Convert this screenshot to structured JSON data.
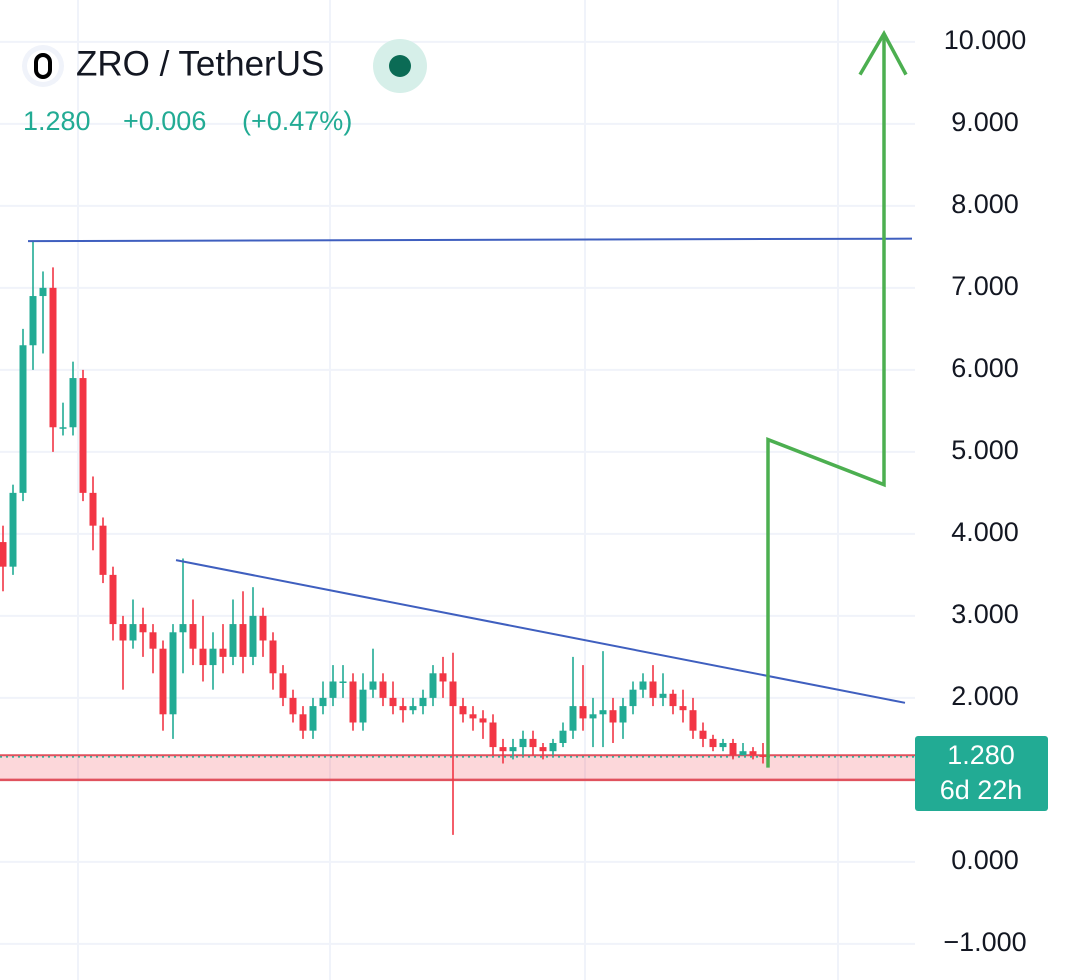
{
  "chart_data": {
    "type": "candlestick",
    "title": "ZRO / TetherUS",
    "price": {
      "value": 1.28,
      "label": "1.280"
    },
    "change": {
      "value": 0.006,
      "label": "+0.006"
    },
    "change_pct": {
      "value": 0.47,
      "label": "(+0.47%)"
    },
    "countdown": "6d 22h",
    "up_color": "#22ab94",
    "down_color": "#f23645",
    "open": [
      3.9,
      3.6,
      4.5,
      6.3,
      6.9,
      7.0,
      5.3,
      5.3,
      5.9,
      4.5,
      4.1,
      3.5,
      2.9,
      2.7,
      2.9,
      2.8,
      2.6,
      1.8,
      2.8,
      2.9,
      2.6,
      2.4,
      2.6,
      2.5,
      2.9,
      2.5,
      3.0,
      2.7,
      2.3,
      2.0,
      1.8,
      1.6,
      1.9,
      2.0,
      2.2,
      2.2,
      1.7,
      2.1,
      2.2,
      2.0,
      1.9,
      1.85,
      1.9,
      2.0,
      2.3,
      2.2,
      1.9,
      1.8,
      1.75,
      1.7,
      1.4,
      1.35,
      1.4,
      1.5,
      1.4,
      1.35,
      1.45,
      1.6,
      1.9,
      1.75,
      1.8,
      1.85,
      1.7,
      1.9,
      2.1,
      2.2,
      2.0,
      2.05,
      1.9,
      1.85,
      1.6,
      1.5,
      1.4,
      1.45,
      1.3,
      1.35,
      1.3
    ],
    "high": [
      4.1,
      4.6,
      6.5,
      7.57,
      7.2,
      7.25,
      5.6,
      6.1,
      6.0,
      4.7,
      4.2,
      3.6,
      3.0,
      3.2,
      3.1,
      2.9,
      2.7,
      2.9,
      3.7,
      3.2,
      3.0,
      2.8,
      2.9,
      3.2,
      3.3,
      3.35,
      3.1,
      2.8,
      2.4,
      2.1,
      1.9,
      2.0,
      2.2,
      2.4,
      2.4,
      2.3,
      2.3,
      2.6,
      2.3,
      2.2,
      2.0,
      2.0,
      2.1,
      2.4,
      2.5,
      2.55,
      2.0,
      1.9,
      1.85,
      1.8,
      1.5,
      1.5,
      1.6,
      1.6,
      1.45,
      1.5,
      1.7,
      2.5,
      2.4,
      2.0,
      2.57,
      2.0,
      2.0,
      2.2,
      2.3,
      2.4,
      2.3,
      2.1,
      2.1,
      2.0,
      1.7,
      1.55,
      1.5,
      1.5,
      1.45,
      1.4,
      1.45
    ],
    "low": [
      3.3,
      3.5,
      4.4,
      6.0,
      6.2,
      5.0,
      5.2,
      5.2,
      4.4,
      3.8,
      3.4,
      2.7,
      2.1,
      2.6,
      2.5,
      2.3,
      1.6,
      1.5,
      2.3,
      2.4,
      2.2,
      2.1,
      2.3,
      2.4,
      2.3,
      2.4,
      2.5,
      2.1,
      1.9,
      1.7,
      1.5,
      1.5,
      1.8,
      1.9,
      2.0,
      1.6,
      1.6,
      2.0,
      1.9,
      1.8,
      1.7,
      1.8,
      1.8,
      1.9,
      2.0,
      0.33,
      1.7,
      1.6,
      1.5,
      1.3,
      1.2,
      1.25,
      1.3,
      1.3,
      1.25,
      1.3,
      1.4,
      1.5,
      1.6,
      1.4,
      1.4,
      1.45,
      1.5,
      1.8,
      2.0,
      1.9,
      1.9,
      1.8,
      1.7,
      1.5,
      1.4,
      1.35,
      1.35,
      1.25,
      1.3,
      1.25,
      1.2
    ],
    "close": [
      3.6,
      4.5,
      6.3,
      6.9,
      7.0,
      5.3,
      5.3,
      5.9,
      4.5,
      4.1,
      3.5,
      2.9,
      2.7,
      2.9,
      2.8,
      2.6,
      1.8,
      2.8,
      2.9,
      2.6,
      2.4,
      2.6,
      2.5,
      2.9,
      2.5,
      3.0,
      2.7,
      2.3,
      2.0,
      1.8,
      1.6,
      1.9,
      2.0,
      2.2,
      2.2,
      1.7,
      2.1,
      2.2,
      2.0,
      1.9,
      1.85,
      1.9,
      2.0,
      2.3,
      2.2,
      1.9,
      1.8,
      1.75,
      1.7,
      1.4,
      1.35,
      1.4,
      1.5,
      1.4,
      1.35,
      1.45,
      1.6,
      1.9,
      1.75,
      1.8,
      1.85,
      1.7,
      1.9,
      2.1,
      2.2,
      2.0,
      2.05,
      1.9,
      1.85,
      1.6,
      1.5,
      1.4,
      1.45,
      1.3,
      1.35,
      1.3,
      1.28
    ],
    "xlim": [
      -0.3,
      91.2
    ],
    "ylim": [
      -1.44,
      10.51
    ],
    "yticks": [
      {
        "value": 10,
        "label": "10.000"
      },
      {
        "value": 9,
        "label": "9.000"
      },
      {
        "value": 8,
        "label": "8.000"
      },
      {
        "value": 7,
        "label": "7.000"
      },
      {
        "value": 6,
        "label": "6.000"
      },
      {
        "value": 5,
        "label": "5.000"
      },
      {
        "value": 4,
        "label": "4.000"
      },
      {
        "value": 3,
        "label": "3.000"
      },
      {
        "value": 2,
        "label": "2.000"
      },
      {
        "value": 0,
        "label": "0.000"
      },
      {
        "value": -1,
        "label": "−1.000"
      }
    ],
    "grid": true,
    "support_zone": [
      1.0,
      1.3
    ],
    "drawings": [
      {
        "color": "#3f5fbf",
        "x": [
          2.5,
          90.9
        ],
        "y": [
          7.57,
          7.6
        ]
      },
      {
        "color": "#3f5fbf",
        "x": [
          17.3,
          90.2
        ],
        "y": [
          3.68,
          1.94
        ]
      },
      {
        "color": "#4caf50",
        "x": [
          76.5,
          76.5,
          88.1,
          88.1
        ],
        "y": [
          1.15,
          5.15,
          4.6,
          10.1
        ]
      },
      {
        "color": "#4caf50",
        "x": [
          85.7,
          88.1,
          90.3
        ],
        "y": [
          9.6,
          10.1,
          9.6
        ]
      }
    ]
  }
}
